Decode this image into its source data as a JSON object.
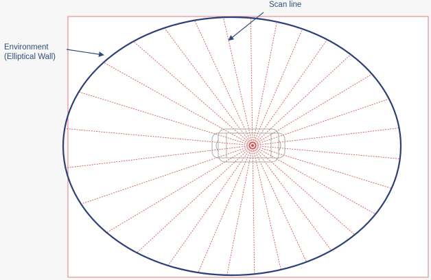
{
  "labels": {
    "environment_line1": "Environment",
    "environment_line2": "(Elliptical Wall)",
    "scan_line": "Scan line"
  },
  "colors": {
    "frame": "#e07a80",
    "wall": "#2b3f7a",
    "scan_line": "#d9534f",
    "robot_outline": "#9a9a9a",
    "label_text": "#2f4c7a",
    "arrow": "#2f4c7a"
  },
  "scan": {
    "ray_count": 30,
    "pattern": "dashed"
  }
}
